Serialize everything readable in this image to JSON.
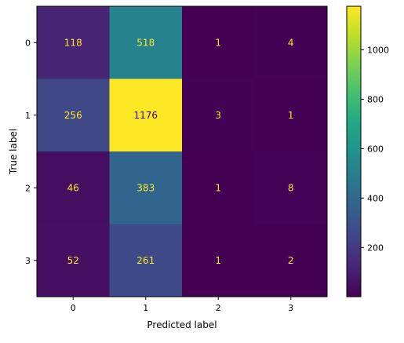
{
  "chart_data": {
    "type": "heatmap",
    "title": "",
    "xlabel": "Predicted label",
    "ylabel": "True label",
    "x_categories": [
      "0",
      "1",
      "2",
      "3"
    ],
    "y_categories": [
      "0",
      "1",
      "2",
      "3"
    ],
    "matrix": [
      [
        118,
        518,
        1,
        4
      ],
      [
        256,
        1176,
        3,
        1
      ],
      [
        46,
        383,
        1,
        8
      ],
      [
        52,
        261,
        1,
        2
      ]
    ],
    "colormap": "viridis",
    "value_range": [
      1,
      1176
    ],
    "colorbar_ticks": [
      200,
      400,
      600,
      800,
      1000
    ],
    "label_colors": {
      "on_dark": "#fde725",
      "on_light": "#440154"
    },
    "grid": false
  }
}
